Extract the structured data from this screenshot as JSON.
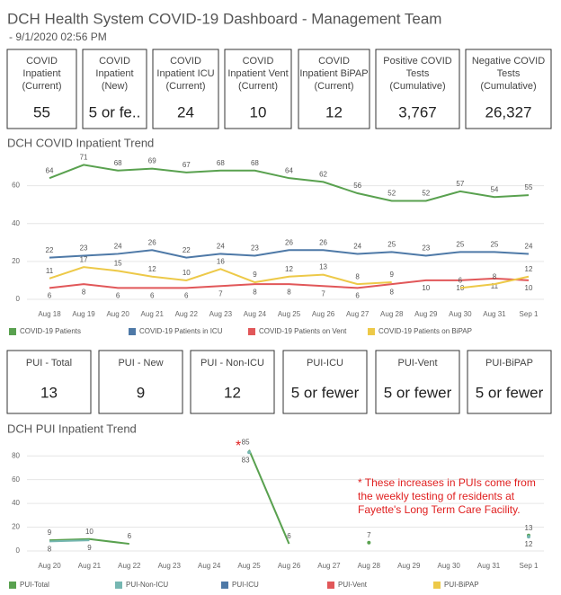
{
  "header": {
    "title": "DCH Health System COVID-19 Dashboard - Management Team",
    "subtitle": "- 9/1/2020 02:56 PM"
  },
  "kpis": [
    {
      "label": [
        "COVID",
        "Inpatient",
        "(Current)"
      ],
      "value": "55"
    },
    {
      "label": [
        "COVID",
        "Inpatient",
        "(New)"
      ],
      "value": "5 or fe.."
    },
    {
      "label": [
        "COVID",
        "Inpatient ICU",
        "(Current)"
      ],
      "value": "24"
    },
    {
      "label": [
        "COVID",
        "Inpatient Vent",
        "(Current)"
      ],
      "value": "10"
    },
    {
      "label": [
        "COVID",
        "Inpatient BiPAP",
        "(Current)"
      ],
      "value": "12"
    },
    {
      "label": [
        "Positive COVID",
        "Tests",
        "(Cumulative)"
      ],
      "value": "3,767"
    },
    {
      "label": [
        "Negative COVID",
        "Tests",
        "(Cumulative)"
      ],
      "value": "26,327"
    }
  ],
  "pui_kpis": [
    {
      "label": "PUI - Total",
      "value": "13"
    },
    {
      "label": "PUI - New",
      "value": "9"
    },
    {
      "label": "PUI - Non-ICU",
      "value": "12"
    },
    {
      "label": "PUI-ICU",
      "value": "5 or fewer"
    },
    {
      "label": "PUI-Vent",
      "value": "5 or fewer"
    },
    {
      "label": "PUI-BiPAP",
      "value": "5 or fewer"
    }
  ],
  "chart_data": [
    {
      "type": "line",
      "title": "DCH COVID Inpatient Trend",
      "categories": [
        "Aug 18",
        "Aug 19",
        "Aug 20",
        "Aug 21",
        "Aug 22",
        "Aug 23",
        "Aug 24",
        "Aug 25",
        "Aug 26",
        "Aug 27",
        "Aug 28",
        "Aug 29",
        "Aug 30",
        "Aug 31",
        "Sep 1"
      ],
      "ylim": [
        0,
        75
      ],
      "yticks": [
        0,
        20,
        40,
        60
      ],
      "grid": true,
      "series": [
        {
          "name": "COVID-19 Patients",
          "color": "#59a14f",
          "values": [
            64,
            71,
            68,
            69,
            67,
            68,
            68,
            64,
            62,
            56,
            52,
            52,
            57,
            54,
            55
          ]
        },
        {
          "name": "COVID-19 Patients in ICU",
          "color": "#4e79a7",
          "values": [
            22,
            23,
            24,
            26,
            22,
            24,
            23,
            26,
            26,
            24,
            25,
            23,
            25,
            25,
            24
          ]
        },
        {
          "name": "COVID-19 Patients on Vent",
          "color": "#e15759",
          "values": [
            6,
            8,
            6,
            6,
            6,
            7,
            8,
            8,
            7,
            6,
            8,
            10,
            10,
            11,
            10
          ]
        },
        {
          "name": "COVID-19 Patients on BiPAP",
          "color": "#edc948",
          "values": [
            11,
            17,
            15,
            12,
            10,
            16,
            9,
            12,
            13,
            8,
            9,
            null,
            6,
            8,
            12
          ]
        }
      ]
    },
    {
      "type": "line",
      "title": "DCH PUI Inpatient Trend",
      "categories": [
        "Aug 20",
        "Aug 21",
        "Aug 22",
        "Aug 23",
        "Aug 24",
        "Aug 25",
        "Aug 26",
        "Aug 27",
        "Aug 28",
        "Aug 29",
        "Aug 30",
        "Aug 31",
        "Sep 1"
      ],
      "ylim": [
        0,
        90
      ],
      "yticks": [
        0,
        20,
        40,
        60,
        80
      ],
      "grid": true,
      "annotation": {
        "marker": "*",
        "lines": [
          "* These increases in PUIs come from",
          "the weekly testing of residents at",
          "Fayette's Long Term Care Facility."
        ]
      },
      "series": [
        {
          "name": "PUI-Total",
          "color": "#59a14f",
          "values": [
            9,
            10,
            6,
            null,
            null,
            85,
            6,
            null,
            7,
            null,
            null,
            null,
            13
          ]
        },
        {
          "name": "PUI-Non-ICU",
          "color": "#76b7b2",
          "values": [
            8,
            9,
            null,
            null,
            null,
            83,
            null,
            null,
            null,
            null,
            null,
            null,
            12
          ]
        },
        {
          "name": "PUI-ICU",
          "color": "#4e79a7"
        },
        {
          "name": "PUI-Vent",
          "color": "#e15759"
        },
        {
          "name": "PUI-BiPAP",
          "color": "#edc948"
        }
      ]
    }
  ]
}
